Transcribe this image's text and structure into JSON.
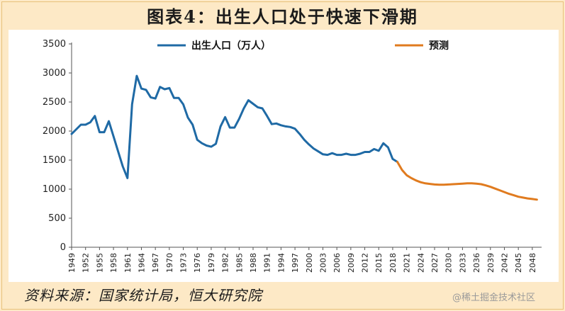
{
  "title": "图表4：出生人口处于快速下滑期",
  "source": "资料来源：国家统计局，恒大研究院",
  "watermark": "@稀土掘金技术社区",
  "colors": {
    "actual": "#1f6aa5",
    "forecast": "#e07b1f",
    "background": "#fde9c6"
  },
  "chart_data": {
    "type": "line",
    "ylim": [
      0,
      3500
    ],
    "yticks": [
      0,
      500,
      1000,
      1500,
      2000,
      2500,
      3000,
      3500
    ],
    "xlim": [
      1949,
      2050
    ],
    "xticks": [
      1949,
      1952,
      1955,
      1958,
      1961,
      1964,
      1967,
      1970,
      1973,
      1976,
      1979,
      1982,
      1985,
      1988,
      1991,
      1994,
      1997,
      2000,
      2003,
      2006,
      2009,
      2012,
      2015,
      2018,
      2021,
      2024,
      2027,
      2030,
      2033,
      2036,
      2039,
      2042,
      2045,
      2048
    ],
    "legend_position": "top",
    "grid": false,
    "series": [
      {
        "name": "出生人口（万人）",
        "x": [
          1949,
          1950,
          1951,
          1952,
          1953,
          1954,
          1955,
          1956,
          1957,
          1958,
          1959,
          1960,
          1961,
          1962,
          1963,
          1964,
          1965,
          1966,
          1967,
          1968,
          1969,
          1970,
          1971,
          1972,
          1973,
          1974,
          1975,
          1976,
          1977,
          1978,
          1979,
          1980,
          1981,
          1982,
          1983,
          1984,
          1985,
          1986,
          1987,
          1988,
          1989,
          1990,
          1991,
          1992,
          1993,
          1994,
          1995,
          1996,
          1997,
          1998,
          1999,
          2000,
          2001,
          2002,
          2003,
          2004,
          2005,
          2006,
          2007,
          2008,
          2009,
          2010,
          2011,
          2012,
          2013,
          2014,
          2015,
          2016,
          2017,
          2018,
          2019
        ],
        "values": [
          1950,
          2030,
          2110,
          2110,
          2150,
          2260,
          1980,
          1980,
          2170,
          1910,
          1650,
          1390,
          1190,
          2460,
          2950,
          2730,
          2710,
          2580,
          2560,
          2760,
          2720,
          2740,
          2570,
          2570,
          2460,
          2230,
          2110,
          1850,
          1790,
          1750,
          1730,
          1780,
          2080,
          2240,
          2060,
          2060,
          2210,
          2390,
          2530,
          2470,
          2410,
          2390,
          2260,
          2120,
          2130,
          2100,
          2080,
          2070,
          2040,
          1950,
          1850,
          1770,
          1700,
          1650,
          1600,
          1590,
          1620,
          1590,
          1590,
          1610,
          1590,
          1590,
          1610,
          1640,
          1640,
          1690,
          1660,
          1790,
          1720,
          1520,
          1470
        ]
      },
      {
        "name": "预测",
        "x": [
          2019,
          2020,
          2021,
          2022,
          2023,
          2024,
          2025,
          2026,
          2027,
          2028,
          2029,
          2030,
          2031,
          2032,
          2033,
          2034,
          2035,
          2036,
          2037,
          2038,
          2039,
          2040,
          2041,
          2042,
          2043,
          2044,
          2045,
          2046,
          2047,
          2048,
          2049
        ],
        "values": [
          1470,
          1330,
          1240,
          1190,
          1150,
          1120,
          1100,
          1090,
          1080,
          1075,
          1075,
          1080,
          1085,
          1090,
          1095,
          1100,
          1100,
          1095,
          1085,
          1065,
          1040,
          1010,
          980,
          950,
          920,
          895,
          870,
          855,
          840,
          830,
          820
        ]
      }
    ]
  }
}
